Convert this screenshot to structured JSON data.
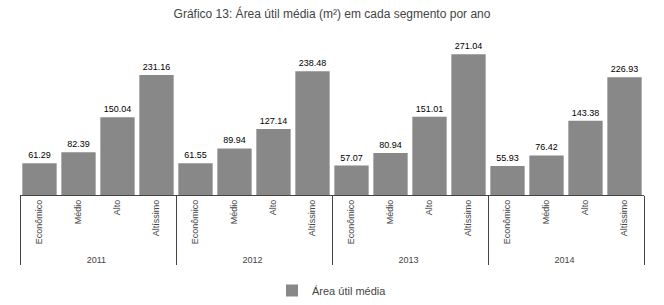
{
  "chart_data": {
    "type": "bar",
    "title": "Gráfico 13: Área útil média (m²) em cada segmento por ano",
    "categories": [
      [
        "2011",
        "Econômico"
      ],
      [
        "2011",
        "Médio"
      ],
      [
        "2011",
        "Alto"
      ],
      [
        "2011",
        "Altíssimo"
      ],
      [
        "2012",
        "Econômico"
      ],
      [
        "2012",
        "Médio"
      ],
      [
        "2012",
        "Alto"
      ],
      [
        "2012",
        "Altíssimo"
      ],
      [
        "2013",
        "Econômico"
      ],
      [
        "2013",
        "Médio"
      ],
      [
        "2013",
        "Alto"
      ],
      [
        "2013",
        "Altíssimo"
      ],
      [
        "2014",
        "Econômico"
      ],
      [
        "2014",
        "Médio"
      ],
      [
        "2014",
        "Alto"
      ],
      [
        "2014",
        "Altíssimo"
      ]
    ],
    "series": [
      {
        "name": "Área útil média",
        "color": "#888888",
        "values": [
          61.29,
          82.39,
          150.04,
          231.16,
          61.55,
          89.94,
          127.14,
          238.48,
          57.07,
          80.94,
          151.01,
          271.04,
          55.93,
          76.42,
          143.38,
          226.93
        ]
      }
    ],
    "ylim": [
      0,
      310
    ],
    "grid": false,
    "legend": "bottom",
    "data_labels": true,
    "tick_labels": "x"
  }
}
